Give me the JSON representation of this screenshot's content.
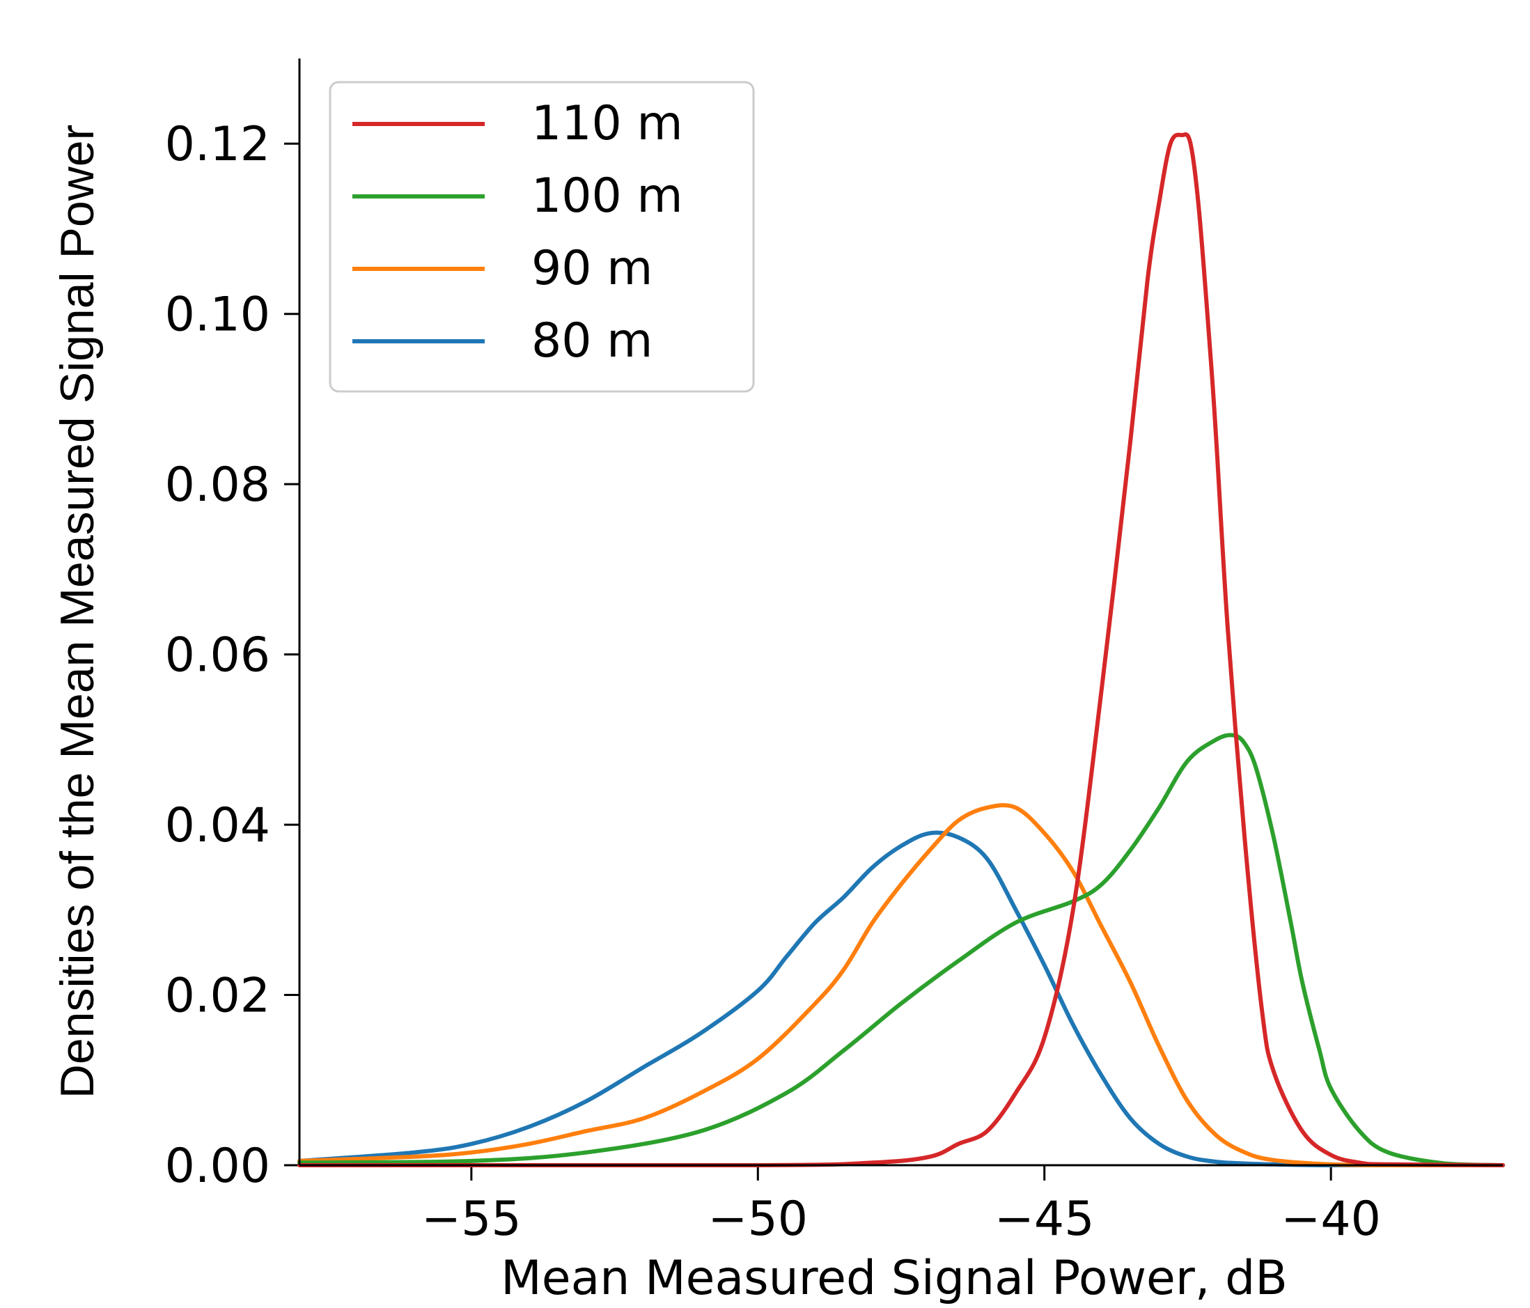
{
  "chart_data": {
    "type": "line",
    "title": "",
    "xlabel": "Mean Measured Signal Power, dB",
    "ylabel": "Densities of the Mean Measured Signal Power",
    "xlim": [
      -58,
      -37
    ],
    "ylim": [
      0,
      0.13
    ],
    "xticks": [
      -55,
      -50,
      -45,
      -40
    ],
    "xtick_labels": [
      "−55",
      "−50",
      "−45",
      "−40"
    ],
    "yticks": [
      0.0,
      0.02,
      0.04,
      0.06,
      0.08,
      0.1,
      0.12
    ],
    "ytick_labels": [
      "0.00",
      "0.02",
      "0.04",
      "0.06",
      "0.08",
      "0.10",
      "0.12"
    ],
    "grid": false,
    "legend_position": "top-left",
    "series": [
      {
        "name": "110 m",
        "color": "#d62728",
        "x": [
          -58,
          -50,
          -48,
          -47,
          -46.5,
          -46,
          -45.5,
          -45,
          -44.5,
          -44,
          -43.5,
          -43.2,
          -43,
          -42.8,
          -42.6,
          -42.45,
          -42.3,
          -42.1,
          -42,
          -41.8,
          -41.5,
          -41.2,
          -41,
          -40.5,
          -40,
          -39.5,
          -39,
          -37
        ],
        "values": [
          0,
          0,
          0.0003,
          0.001,
          0.0025,
          0.004,
          0.0085,
          0.015,
          0.03,
          0.056,
          0.085,
          0.104,
          0.113,
          0.12,
          0.121,
          0.12,
          0.112,
          0.095,
          0.085,
          0.063,
          0.038,
          0.018,
          0.011,
          0.004,
          0.0012,
          0.0003,
          0.0001,
          0
        ]
      },
      {
        "name": "100 m",
        "color": "#2ca02c",
        "x": [
          -58,
          -55,
          -53,
          -51,
          -49.5,
          -48.5,
          -47.5,
          -46.5,
          -45.5,
          -44.5,
          -44,
          -43.5,
          -43,
          -42.5,
          -42,
          -41.7,
          -41.5,
          -41.3,
          -41,
          -40.7,
          -40.5,
          -40.2,
          -40,
          -39.5,
          -39,
          -38,
          -37
        ],
        "values": [
          0.0003,
          0.0005,
          0.0015,
          0.004,
          0.0085,
          0.0135,
          0.019,
          0.024,
          0.0285,
          0.031,
          0.033,
          0.037,
          0.042,
          0.0475,
          0.05,
          0.0505,
          0.0495,
          0.0465,
          0.0385,
          0.0285,
          0.0215,
          0.0135,
          0.009,
          0.004,
          0.0015,
          0.0002,
          0
        ]
      },
      {
        "name": "90 m",
        "color": "#ff7f0e",
        "x": [
          -58,
          -56,
          -55,
          -54,
          -53,
          -52,
          -51,
          -50,
          -49,
          -48.5,
          -48,
          -47.5,
          -47,
          -46.5,
          -46,
          -45.5,
          -45,
          -44.5,
          -44,
          -43.5,
          -43,
          -42.5,
          -42,
          -41.5,
          -41,
          -40,
          -39,
          -37
        ],
        "values": [
          0.0005,
          0.001,
          0.0015,
          0.0025,
          0.004,
          0.0055,
          0.0085,
          0.0125,
          0.019,
          0.023,
          0.0285,
          0.033,
          0.037,
          0.0405,
          0.042,
          0.042,
          0.039,
          0.0345,
          0.028,
          0.0215,
          0.014,
          0.0075,
          0.0035,
          0.0015,
          0.0006,
          0.0001,
          0,
          0
        ]
      },
      {
        "name": "80 m",
        "color": "#1f77b4",
        "x": [
          -58,
          -56,
          -55,
          -54,
          -53,
          -52,
          -51,
          -50,
          -49.5,
          -49,
          -48.5,
          -48,
          -47.5,
          -47,
          -46.5,
          -46,
          -45.5,
          -45,
          -44.5,
          -44,
          -43.5,
          -43,
          -42.5,
          -42,
          -41.5,
          -41,
          -40,
          -37
        ],
        "values": [
          0.0005,
          0.0015,
          0.0025,
          0.0045,
          0.0075,
          0.0115,
          0.0155,
          0.0205,
          0.0245,
          0.0285,
          0.0315,
          0.035,
          0.0375,
          0.039,
          0.0385,
          0.036,
          0.03,
          0.0235,
          0.0165,
          0.0105,
          0.0055,
          0.0025,
          0.001,
          0.0004,
          0.0002,
          0.0001,
          0,
          0
        ]
      }
    ]
  }
}
